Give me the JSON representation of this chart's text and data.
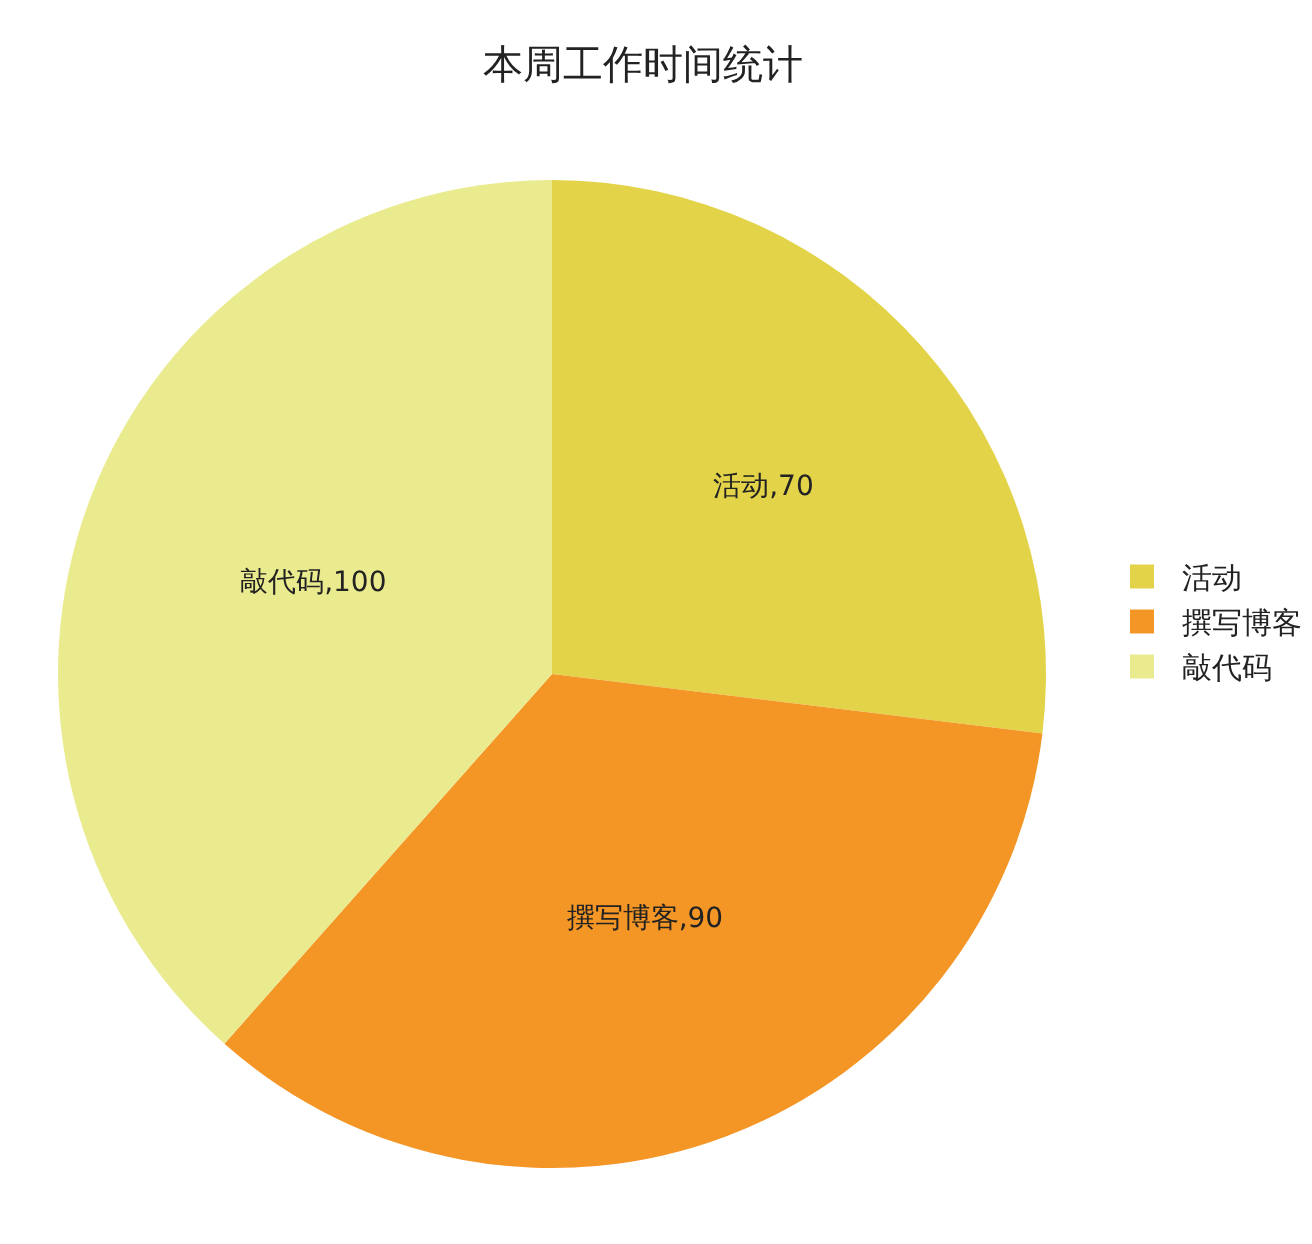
{
  "chart_data": {
    "type": "pie",
    "title": "本周工作时间统计",
    "categories": [
      "活动",
      "撰写博客",
      "敲代码"
    ],
    "values": [
      70,
      90,
      100
    ],
    "value_labels": [
      "活动,70",
      "撰写博客,90",
      "敲代码,100"
    ],
    "colors": [
      "#e3d349",
      "#f49626",
      "#eaeb8f"
    ],
    "legend": "right"
  }
}
